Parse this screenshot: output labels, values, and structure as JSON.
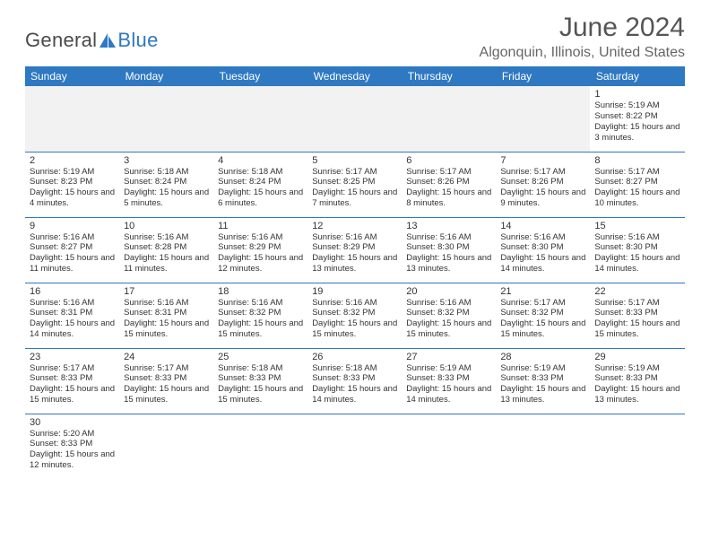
{
  "brand": {
    "text1": "General",
    "text2": "Blue",
    "sail_color": "#2f78c2"
  },
  "title": "June 2024",
  "location": "Algonquin, Illinois, United States",
  "colors": {
    "header_bg": "#2f78c2",
    "header_fg": "#ffffff",
    "grid_line": "#2f78c2",
    "blank_bg": "#f2f2f2",
    "text": "#333333",
    "title_color": "#555555",
    "location_color": "#666666"
  },
  "weekdays": [
    "Sunday",
    "Monday",
    "Tuesday",
    "Wednesday",
    "Thursday",
    "Friday",
    "Saturday"
  ],
  "weeks": [
    [
      null,
      null,
      null,
      null,
      null,
      null,
      {
        "n": "1",
        "sr": "Sunrise: 5:19 AM",
        "ss": "Sunset: 8:22 PM",
        "dl": "Daylight: 15 hours and 3 minutes."
      }
    ],
    [
      {
        "n": "2",
        "sr": "Sunrise: 5:19 AM",
        "ss": "Sunset: 8:23 PM",
        "dl": "Daylight: 15 hours and 4 minutes."
      },
      {
        "n": "3",
        "sr": "Sunrise: 5:18 AM",
        "ss": "Sunset: 8:24 PM",
        "dl": "Daylight: 15 hours and 5 minutes."
      },
      {
        "n": "4",
        "sr": "Sunrise: 5:18 AM",
        "ss": "Sunset: 8:24 PM",
        "dl": "Daylight: 15 hours and 6 minutes."
      },
      {
        "n": "5",
        "sr": "Sunrise: 5:17 AM",
        "ss": "Sunset: 8:25 PM",
        "dl": "Daylight: 15 hours and 7 minutes."
      },
      {
        "n": "6",
        "sr": "Sunrise: 5:17 AM",
        "ss": "Sunset: 8:26 PM",
        "dl": "Daylight: 15 hours and 8 minutes."
      },
      {
        "n": "7",
        "sr": "Sunrise: 5:17 AM",
        "ss": "Sunset: 8:26 PM",
        "dl": "Daylight: 15 hours and 9 minutes."
      },
      {
        "n": "8",
        "sr": "Sunrise: 5:17 AM",
        "ss": "Sunset: 8:27 PM",
        "dl": "Daylight: 15 hours and 10 minutes."
      }
    ],
    [
      {
        "n": "9",
        "sr": "Sunrise: 5:16 AM",
        "ss": "Sunset: 8:27 PM",
        "dl": "Daylight: 15 hours and 11 minutes."
      },
      {
        "n": "10",
        "sr": "Sunrise: 5:16 AM",
        "ss": "Sunset: 8:28 PM",
        "dl": "Daylight: 15 hours and 11 minutes."
      },
      {
        "n": "11",
        "sr": "Sunrise: 5:16 AM",
        "ss": "Sunset: 8:29 PM",
        "dl": "Daylight: 15 hours and 12 minutes."
      },
      {
        "n": "12",
        "sr": "Sunrise: 5:16 AM",
        "ss": "Sunset: 8:29 PM",
        "dl": "Daylight: 15 hours and 13 minutes."
      },
      {
        "n": "13",
        "sr": "Sunrise: 5:16 AM",
        "ss": "Sunset: 8:30 PM",
        "dl": "Daylight: 15 hours and 13 minutes."
      },
      {
        "n": "14",
        "sr": "Sunrise: 5:16 AM",
        "ss": "Sunset: 8:30 PM",
        "dl": "Daylight: 15 hours and 14 minutes."
      },
      {
        "n": "15",
        "sr": "Sunrise: 5:16 AM",
        "ss": "Sunset: 8:30 PM",
        "dl": "Daylight: 15 hours and 14 minutes."
      }
    ],
    [
      {
        "n": "16",
        "sr": "Sunrise: 5:16 AM",
        "ss": "Sunset: 8:31 PM",
        "dl": "Daylight: 15 hours and 14 minutes."
      },
      {
        "n": "17",
        "sr": "Sunrise: 5:16 AM",
        "ss": "Sunset: 8:31 PM",
        "dl": "Daylight: 15 hours and 15 minutes."
      },
      {
        "n": "18",
        "sr": "Sunrise: 5:16 AM",
        "ss": "Sunset: 8:32 PM",
        "dl": "Daylight: 15 hours and 15 minutes."
      },
      {
        "n": "19",
        "sr": "Sunrise: 5:16 AM",
        "ss": "Sunset: 8:32 PM",
        "dl": "Daylight: 15 hours and 15 minutes."
      },
      {
        "n": "20",
        "sr": "Sunrise: 5:16 AM",
        "ss": "Sunset: 8:32 PM",
        "dl": "Daylight: 15 hours and 15 minutes."
      },
      {
        "n": "21",
        "sr": "Sunrise: 5:17 AM",
        "ss": "Sunset: 8:32 PM",
        "dl": "Daylight: 15 hours and 15 minutes."
      },
      {
        "n": "22",
        "sr": "Sunrise: 5:17 AM",
        "ss": "Sunset: 8:33 PM",
        "dl": "Daylight: 15 hours and 15 minutes."
      }
    ],
    [
      {
        "n": "23",
        "sr": "Sunrise: 5:17 AM",
        "ss": "Sunset: 8:33 PM",
        "dl": "Daylight: 15 hours and 15 minutes."
      },
      {
        "n": "24",
        "sr": "Sunrise: 5:17 AM",
        "ss": "Sunset: 8:33 PM",
        "dl": "Daylight: 15 hours and 15 minutes."
      },
      {
        "n": "25",
        "sr": "Sunrise: 5:18 AM",
        "ss": "Sunset: 8:33 PM",
        "dl": "Daylight: 15 hours and 15 minutes."
      },
      {
        "n": "26",
        "sr": "Sunrise: 5:18 AM",
        "ss": "Sunset: 8:33 PM",
        "dl": "Daylight: 15 hours and 14 minutes."
      },
      {
        "n": "27",
        "sr": "Sunrise: 5:19 AM",
        "ss": "Sunset: 8:33 PM",
        "dl": "Daylight: 15 hours and 14 minutes."
      },
      {
        "n": "28",
        "sr": "Sunrise: 5:19 AM",
        "ss": "Sunset: 8:33 PM",
        "dl": "Daylight: 15 hours and 13 minutes."
      },
      {
        "n": "29",
        "sr": "Sunrise: 5:19 AM",
        "ss": "Sunset: 8:33 PM",
        "dl": "Daylight: 15 hours and 13 minutes."
      }
    ],
    [
      {
        "n": "30",
        "sr": "Sunrise: 5:20 AM",
        "ss": "Sunset: 8:33 PM",
        "dl": "Daylight: 15 hours and 12 minutes."
      },
      null,
      null,
      null,
      null,
      null,
      null
    ]
  ]
}
